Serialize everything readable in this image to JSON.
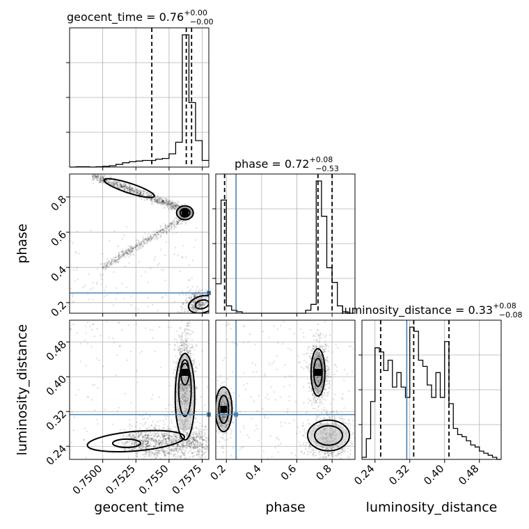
{
  "chart_data": {
    "type": "corner",
    "parameters": [
      {
        "name": "geocent_time",
        "axis_label": "geocent_time",
        "title": {
          "prefix": "geocent_time = ",
          "median": "0.76",
          "plus": "+0.00",
          "minus": "−0.00"
        },
        "range": [
          0.7475,
          0.758
        ],
        "ticks": [
          0.75,
          0.7525,
          0.755,
          0.7575
        ],
        "tick_labels": [
          "0.7500",
          "0.7525",
          "0.7550",
          "0.7575"
        ],
        "quantiles": [
          0.7537,
          0.7563,
          0.7567
        ],
        "histogram": {
          "bins": [
            0.7475,
            0.748,
            0.7485,
            0.749,
            0.7495,
            0.75,
            0.7505,
            0.751,
            0.7515,
            0.752,
            0.7525,
            0.753,
            0.7535,
            0.754,
            0.7545,
            0.755,
            0.7555,
            0.756,
            0.7565,
            0.757,
            0.7575,
            0.758
          ],
          "counts": [
            0,
            1,
            1,
            0,
            1,
            2,
            4,
            8,
            13,
            16,
            18,
            20,
            20,
            24,
            26,
            40,
            75,
            400,
            195,
            80,
            20
          ]
        }
      },
      {
        "name": "phase",
        "axis_label": "phase",
        "title": {
          "prefix": "phase = ",
          "median": "0.72",
          "plus": "+0.08",
          "minus": "−0.53"
        },
        "range": [
          0.14,
          0.93
        ],
        "ticks": [
          0.2,
          0.4,
          0.6,
          0.8
        ],
        "tick_labels": [
          "0.2",
          "0.4",
          "0.6",
          "0.8"
        ],
        "quantiles": [
          0.19,
          0.72,
          0.8
        ],
        "truth": 0.255,
        "histogram": {
          "bins": [
            0.14,
            0.17,
            0.2,
            0.23,
            0.26,
            0.29,
            0.32,
            0.35,
            0.38,
            0.41,
            0.44,
            0.47,
            0.5,
            0.53,
            0.56,
            0.59,
            0.62,
            0.65,
            0.68,
            0.71,
            0.74,
            0.77,
            0.8,
            0.83,
            0.86,
            0.89,
            0.92
          ],
          "counts": [
            20,
            77,
            5,
            2,
            1,
            0,
            0,
            0,
            0,
            0,
            0,
            0,
            0,
            0,
            0,
            0,
            0,
            2,
            6,
            90,
            66,
            31,
            21,
            5,
            1,
            0
          ]
        }
      },
      {
        "name": "luminosity_distance",
        "axis_label": "luminosity_distance",
        "title": {
          "prefix": "luminosity_distance = ",
          "median": "0.33",
          "plus": "+0.08",
          "minus": "−0.08"
        },
        "range": [
          0.21,
          0.53
        ],
        "ticks": [
          0.24,
          0.32,
          0.4,
          0.48
        ],
        "tick_labels": [
          "0.24",
          "0.32",
          "0.40",
          "0.48"
        ],
        "quantiles": [
          0.253,
          0.329,
          0.41
        ],
        "truth": 0.313,
        "histogram": {
          "bins": [
            0.21,
            0.22,
            0.23,
            0.24,
            0.25,
            0.26,
            0.27,
            0.28,
            0.29,
            0.3,
            0.31,
            0.32,
            0.33,
            0.34,
            0.35,
            0.36,
            0.37,
            0.38,
            0.39,
            0.4,
            0.41,
            0.42,
            0.43,
            0.44,
            0.45,
            0.46,
            0.47,
            0.48,
            0.49,
            0.5,
            0.51,
            0.52,
            0.53
          ],
          "counts": [
            1,
            10,
            28,
            54,
            52,
            43,
            48,
            35,
            42,
            35,
            30,
            64,
            62,
            48,
            45,
            36,
            30,
            42,
            30,
            57,
            27,
            15,
            12,
            11,
            9,
            7,
            6,
            4,
            3,
            2,
            1,
            0
          ]
        }
      }
    ],
    "joint": [
      {
        "x": "geocent_time",
        "y": "phase",
        "peak": [
          0.7562,
          0.71
        ],
        "truth_y": 0.255
      },
      {
        "x": "geocent_time",
        "y": "luminosity_distance",
        "peak": [
          0.7562,
          0.41
        ],
        "truth_y": 0.313
      },
      {
        "x": "phase",
        "y": "luminosity_distance",
        "peak": [
          0.72,
          0.41
        ],
        "truth_x": 0.255,
        "truth_y": 0.313
      }
    ],
    "grid": true,
    "truth_color": "#4682b4",
    "sample_color": "#000000"
  }
}
